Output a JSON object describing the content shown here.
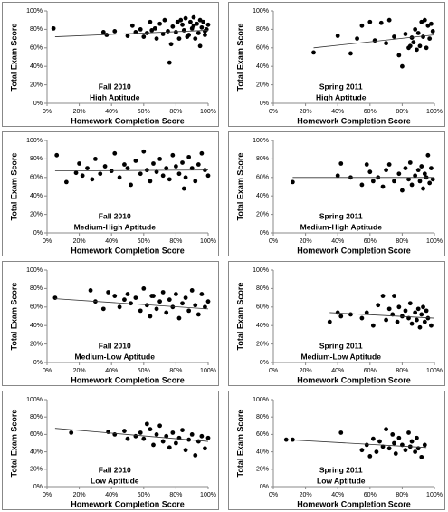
{
  "chart_data": [
    {
      "type": "scatter",
      "title": "Fall 2010",
      "subtitle": "High Aptitude",
      "x_label": "Homework Completion Score",
      "y_label": "Total Exam Score",
      "color": "#000000",
      "x": [
        4,
        35,
        37,
        42,
        50,
        53,
        55,
        58,
        60,
        62,
        64,
        65,
        67,
        68,
        70,
        72,
        73,
        75,
        76,
        78,
        80,
        81,
        82,
        84,
        85,
        86,
        88,
        89,
        90,
        91,
        92,
        93,
        94,
        95,
        96,
        97,
        98,
        99,
        100,
        77,
        83,
        87,
        91,
        95,
        98
      ],
      "values": [
        81,
        77,
        74,
        78,
        73,
        84,
        77,
        80,
        72,
        76,
        88,
        79,
        81,
        70,
        86,
        75,
        90,
        78,
        44,
        83,
        77,
        88,
        70,
        85,
        79,
        92,
        74,
        88,
        81,
        93,
        70,
        86,
        76,
        90,
        82,
        88,
        74,
        80,
        85,
        64,
        90,
        72,
        84,
        62,
        78
      ],
      "trend": {
        "x": [
          5,
          100
        ],
        "y": [
          72,
          79
        ]
      },
      "xlim": [
        0,
        100
      ],
      "ylim": [
        0,
        100
      ],
      "xticks": [
        {
          "value": 0,
          "label": "0%"
        },
        {
          "value": 20,
          "label": "20%"
        },
        {
          "value": 40,
          "label": "40%"
        },
        {
          "value": 60,
          "label": "60%"
        },
        {
          "value": 80,
          "label": "80%"
        },
        {
          "value": 100,
          "label": "100%"
        }
      ],
      "yticks": [
        {
          "value": 0,
          "label": "0%"
        },
        {
          "value": 20,
          "label": "20%"
        },
        {
          "value": 40,
          "label": "40%"
        },
        {
          "value": 60,
          "label": "60%"
        },
        {
          "value": 80,
          "label": "80%"
        },
        {
          "value": 100,
          "label": "100%"
        }
      ]
    },
    {
      "type": "scatter",
      "title": "Spring 2011",
      "subtitle": "High Aptitude",
      "x_label": "Homework Completion Score",
      "y_label": "Total Exam Score",
      "color": "#000000",
      "x": [
        25,
        40,
        48,
        52,
        55,
        60,
        63,
        67,
        70,
        72,
        75,
        78,
        80,
        82,
        84,
        85,
        86,
        87,
        88,
        89,
        90,
        91,
        92,
        93,
        94,
        95,
        96,
        97,
        98,
        99
      ],
      "values": [
        55,
        73,
        54,
        70,
        84,
        88,
        68,
        87,
        65,
        90,
        72,
        52,
        40,
        75,
        60,
        62,
        71,
        66,
        80,
        58,
        76,
        62,
        88,
        72,
        90,
        60,
        84,
        70,
        86,
        78
      ],
      "trend": {
        "x": [
          25,
          100
        ],
        "y": [
          60,
          74
        ]
      },
      "xlim": [
        0,
        100
      ],
      "ylim": [
        0,
        100
      ],
      "xticks": [
        {
          "value": 0,
          "label": "0%"
        },
        {
          "value": 20,
          "label": "20%"
        },
        {
          "value": 40,
          "label": "40%"
        },
        {
          "value": 60,
          "label": "60%"
        },
        {
          "value": 80,
          "label": "80%"
        },
        {
          "value": 100,
          "label": "100%"
        }
      ],
      "yticks": [
        {
          "value": 0,
          "label": "0%"
        },
        {
          "value": 20,
          "label": "20%"
        },
        {
          "value": 40,
          "label": "40%"
        },
        {
          "value": 60,
          "label": "60%"
        },
        {
          "value": 80,
          "label": "80%"
        },
        {
          "value": 100,
          "label": "100%"
        }
      ]
    },
    {
      "type": "scatter",
      "title": "Fall 2010",
      "subtitle": "Medium-High Aptitude",
      "x_label": "Homework Completion Score",
      "y_label": "Total Exam Score",
      "color": "#000000",
      "x": [
        6,
        12,
        18,
        20,
        22,
        25,
        28,
        30,
        33,
        36,
        40,
        42,
        45,
        48,
        50,
        52,
        55,
        58,
        60,
        62,
        64,
        66,
        68,
        70,
        72,
        74,
        76,
        78,
        80,
        82,
        84,
        86,
        88,
        90,
        92,
        94,
        96,
        98,
        100,
        85
      ],
      "values": [
        84,
        55,
        65,
        75,
        62,
        70,
        58,
        80,
        64,
        72,
        67,
        86,
        60,
        74,
        70,
        52,
        78,
        64,
        88,
        68,
        56,
        75,
        66,
        80,
        62,
        70,
        58,
        84,
        72,
        64,
        76,
        60,
        82,
        70,
        56,
        74,
        86,
        68,
        62,
        48
      ],
      "trend": {
        "x": [
          5,
          100
        ],
        "y": [
          67,
          68
        ]
      },
      "xlim": [
        0,
        100
      ],
      "ylim": [
        0,
        100
      ],
      "xticks": [
        {
          "value": 0,
          "label": "0%"
        },
        {
          "value": 20,
          "label": "20%"
        },
        {
          "value": 40,
          "label": "40%"
        },
        {
          "value": 60,
          "label": "60%"
        },
        {
          "value": 80,
          "label": "80%"
        },
        {
          "value": 100,
          "label": "100%"
        }
      ],
      "yticks": [
        {
          "value": 0,
          "label": "0%"
        },
        {
          "value": 20,
          "label": "20%"
        },
        {
          "value": 40,
          "label": "40%"
        },
        {
          "value": 60,
          "label": "60%"
        },
        {
          "value": 80,
          "label": "80%"
        },
        {
          "value": 100,
          "label": "100%"
        }
      ]
    },
    {
      "type": "scatter",
      "title": "Spring 2011",
      "subtitle": "Medium-High Aptitude",
      "x_label": "Homework Completion Score",
      "y_label": "Total Exam Score",
      "color": "#000000",
      "x": [
        12,
        40,
        42,
        48,
        55,
        58,
        60,
        62,
        65,
        68,
        70,
        72,
        75,
        78,
        80,
        82,
        84,
        85,
        86,
        88,
        90,
        91,
        92,
        93,
        94,
        95,
        96,
        97,
        98,
        99
      ],
      "values": [
        55,
        62,
        75,
        60,
        52,
        74,
        66,
        56,
        60,
        50,
        68,
        74,
        56,
        64,
        46,
        70,
        58,
        76,
        52,
        62,
        68,
        56,
        72,
        48,
        64,
        60,
        84,
        54,
        70,
        58
      ],
      "trend": {
        "x": [
          12,
          100
        ],
        "y": [
          60,
          60
        ]
      },
      "xlim": [
        0,
        100
      ],
      "ylim": [
        0,
        100
      ],
      "xticks": [
        {
          "value": 0,
          "label": "0%"
        },
        {
          "value": 20,
          "label": "20%"
        },
        {
          "value": 40,
          "label": "40%"
        },
        {
          "value": 60,
          "label": "60%"
        },
        {
          "value": 80,
          "label": "80%"
        },
        {
          "value": 100,
          "label": "100%"
        }
      ],
      "yticks": [
        {
          "value": 0,
          "label": "0%"
        },
        {
          "value": 20,
          "label": "20%"
        },
        {
          "value": 40,
          "label": "40%"
        },
        {
          "value": 60,
          "label": "60%"
        },
        {
          "value": 80,
          "label": "80%"
        },
        {
          "value": 100,
          "label": "100%"
        }
      ]
    },
    {
      "type": "scatter",
      "title": "Fall 2010",
      "subtitle": "Medium-Low Aptitude",
      "x_label": "Homework Completion Score",
      "y_label": "Total Exam Score",
      "color": "#000000",
      "x": [
        5,
        27,
        30,
        35,
        38,
        42,
        45,
        48,
        50,
        52,
        55,
        58,
        60,
        62,
        64,
        66,
        68,
        70,
        72,
        74,
        76,
        78,
        80,
        82,
        84,
        86,
        88,
        90,
        92,
        94,
        96,
        98,
        100,
        65
      ],
      "values": [
        70,
        78,
        66,
        58,
        76,
        72,
        60,
        68,
        74,
        64,
        70,
        56,
        80,
        62,
        50,
        72,
        58,
        66,
        76,
        54,
        68,
        60,
        74,
        48,
        64,
        70,
        56,
        78,
        62,
        52,
        74,
        60,
        66,
        72
      ],
      "trend": {
        "x": [
          5,
          100
        ],
        "y": [
          69,
          58
        ]
      },
      "xlim": [
        0,
        100
      ],
      "ylim": [
        0,
        100
      ],
      "xticks": [
        {
          "value": 0,
          "label": "0%"
        },
        {
          "value": 20,
          "label": "20%"
        },
        {
          "value": 40,
          "label": "40%"
        },
        {
          "value": 60,
          "label": "60%"
        },
        {
          "value": 80,
          "label": "80%"
        },
        {
          "value": 100,
          "label": "100%"
        }
      ],
      "yticks": [
        {
          "value": 0,
          "label": "0%"
        },
        {
          "value": 20,
          "label": "20%"
        },
        {
          "value": 40,
          "label": "40%"
        },
        {
          "value": 60,
          "label": "60%"
        },
        {
          "value": 80,
          "label": "80%"
        },
        {
          "value": 100,
          "label": "100%"
        }
      ]
    },
    {
      "type": "scatter",
      "title": "Spring 2011",
      "subtitle": "Medium-Low Aptitude",
      "x_label": "Homework Completion Score",
      "y_label": "Total Exam Score",
      "color": "#000000",
      "x": [
        35,
        40,
        42,
        48,
        55,
        58,
        62,
        65,
        68,
        70,
        72,
        74,
        75,
        77,
        78,
        80,
        82,
        84,
        85,
        86,
        88,
        89,
        90,
        91,
        92,
        93,
        94,
        95,
        96,
        98
      ],
      "values": [
        44,
        54,
        50,
        52,
        48,
        54,
        40,
        62,
        72,
        46,
        58,
        52,
        72,
        44,
        60,
        50,
        56,
        48,
        64,
        42,
        54,
        46,
        58,
        38,
        52,
        60,
        44,
        56,
        48,
        40
      ],
      "trend": {
        "x": [
          35,
          100
        ],
        "y": [
          54,
          48
        ]
      },
      "xlim": [
        0,
        100
      ],
      "ylim": [
        0,
        100
      ],
      "xticks": [
        {
          "value": 0,
          "label": "0%"
        },
        {
          "value": 20,
          "label": "20%"
        },
        {
          "value": 40,
          "label": "40%"
        },
        {
          "value": 60,
          "label": "60%"
        },
        {
          "value": 80,
          "label": "80%"
        },
        {
          "value": 100,
          "label": "100%"
        }
      ],
      "yticks": [
        {
          "value": 0,
          "label": "0%"
        },
        {
          "value": 20,
          "label": "20%"
        },
        {
          "value": 40,
          "label": "40%"
        },
        {
          "value": 60,
          "label": "60%"
        },
        {
          "value": 80,
          "label": "80%"
        },
        {
          "value": 100,
          "label": "100%"
        }
      ]
    },
    {
      "type": "scatter",
      "title": "Fall 2010",
      "subtitle": "Low Aptitude",
      "x_label": "Homework Completion Score",
      "y_label": "Total Exam Score",
      "color": "#000000",
      "x": [
        15,
        38,
        42,
        48,
        50,
        55,
        58,
        60,
        62,
        64,
        66,
        68,
        70,
        72,
        74,
        76,
        78,
        80,
        82,
        84,
        86,
        88,
        90,
        92,
        94,
        96,
        98,
        100
      ],
      "values": [
        62,
        63,
        60,
        64,
        55,
        58,
        62,
        55,
        72,
        66,
        48,
        60,
        70,
        52,
        58,
        45,
        62,
        50,
        56,
        65,
        42,
        54,
        60,
        36,
        52,
        58,
        44,
        56
      ],
      "trend": {
        "x": [
          5,
          100
        ],
        "y": [
          67,
          52
        ]
      },
      "xlim": [
        0,
        100
      ],
      "ylim": [
        0,
        100
      ],
      "xticks": [
        {
          "value": 0,
          "label": "0%"
        },
        {
          "value": 20,
          "label": "20%"
        },
        {
          "value": 40,
          "label": "40%"
        },
        {
          "value": 60,
          "label": "60%"
        },
        {
          "value": 80,
          "label": "80%"
        },
        {
          "value": 100,
          "label": "100%"
        }
      ],
      "yticks": [
        {
          "value": 0,
          "label": "0%"
        },
        {
          "value": 20,
          "label": "20%"
        },
        {
          "value": 40,
          "label": "40%"
        },
        {
          "value": 60,
          "label": "60%"
        },
        {
          "value": 80,
          "label": "80%"
        },
        {
          "value": 100,
          "label": "100%"
        }
      ]
    },
    {
      "type": "scatter",
      "title": "Spring 2011",
      "subtitle": "Low Aptitude",
      "x_label": "Homework Completion Score",
      "y_label": "Total Exam Score",
      "color": "#000000",
      "x": [
        8,
        12,
        42,
        55,
        58,
        60,
        62,
        64,
        66,
        68,
        70,
        72,
        74,
        75,
        76,
        78,
        80,
        82,
        84,
        85,
        86,
        88,
        89,
        90,
        92,
        94
      ],
      "values": [
        54,
        54,
        62,
        42,
        48,
        35,
        55,
        40,
        52,
        46,
        66,
        44,
        60,
        50,
        38,
        56,
        48,
        42,
        62,
        46,
        52,
        40,
        56,
        44,
        34,
        48
      ],
      "trend": {
        "x": [
          8,
          95
        ],
        "y": [
          54,
          45
        ]
      },
      "xlim": [
        0,
        100
      ],
      "ylim": [
        0,
        100
      ],
      "xticks": [
        {
          "value": 0,
          "label": "0%"
        },
        {
          "value": 20,
          "label": "20%"
        },
        {
          "value": 40,
          "label": "40%"
        },
        {
          "value": 60,
          "label": "60%"
        },
        {
          "value": 80,
          "label": "80%"
        },
        {
          "value": 100,
          "label": "100%"
        }
      ],
      "yticks": [
        {
          "value": 0,
          "label": "0%"
        },
        {
          "value": 20,
          "label": "20%"
        },
        {
          "value": 40,
          "label": "40%"
        },
        {
          "value": 60,
          "label": "60%"
        },
        {
          "value": 80,
          "label": "80%"
        },
        {
          "value": 100,
          "label": "100%"
        }
      ]
    }
  ]
}
